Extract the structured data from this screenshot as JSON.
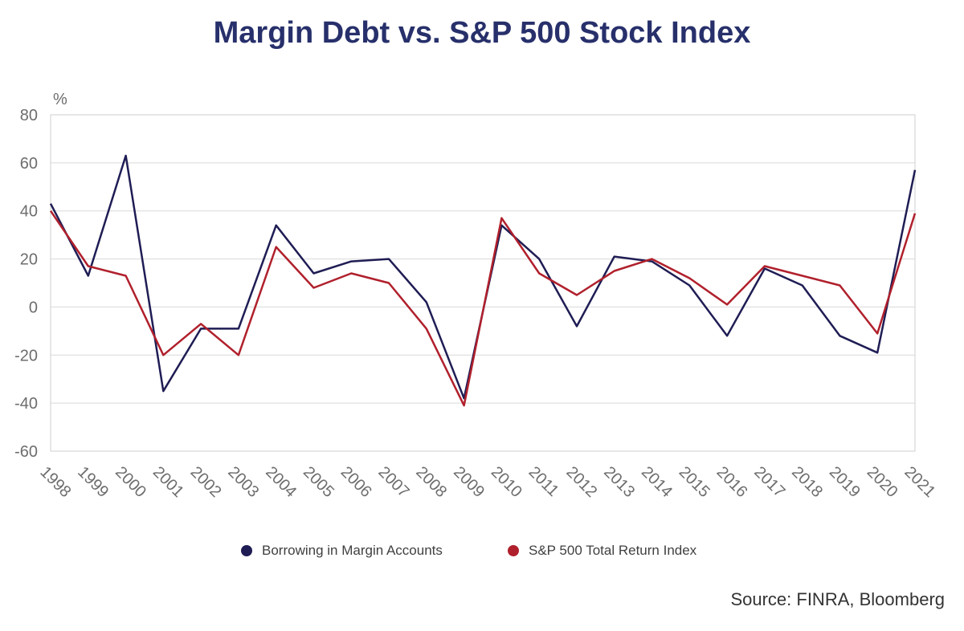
{
  "chart_data": {
    "type": "line",
    "title": "Margin Debt vs. S&P 500 Stock Index",
    "y_unit": "%",
    "ylim": [
      -60,
      80
    ],
    "yticks": [
      80,
      60,
      40,
      20,
      0,
      -20,
      -40,
      -60
    ],
    "grid": true,
    "legend_position": "bottom",
    "x": [
      "1998",
      "1999",
      "2000",
      "2001",
      "2002",
      "2003",
      "2004",
      "2005",
      "2006",
      "2007",
      "2008",
      "2009",
      "2010",
      "2011",
      "2012",
      "2013",
      "2014",
      "2015",
      "2016",
      "2017",
      "2018",
      "2019",
      "2020",
      "2021"
    ],
    "series": [
      {
        "name": "Borrowing in Margin Accounts",
        "color": "#1f1d54",
        "values": [
          43,
          13,
          63,
          -35,
          -9,
          -9,
          34,
          14,
          19,
          20,
          2,
          -38,
          34,
          20,
          -8,
          21,
          19,
          9,
          -12,
          16,
          9,
          -12,
          -19,
          57
        ]
      },
      {
        "name": "S&P 500 Total Return Index",
        "color": "#b0202c",
        "values": [
          40,
          17,
          13,
          -20,
          -7,
          -20,
          25,
          8,
          14,
          10,
          -9,
          -41,
          37,
          14,
          5,
          15,
          20,
          12,
          1,
          17,
          13,
          9,
          -11,
          39
        ]
      }
    ],
    "source": "Source: FINRA, Bloomberg"
  }
}
